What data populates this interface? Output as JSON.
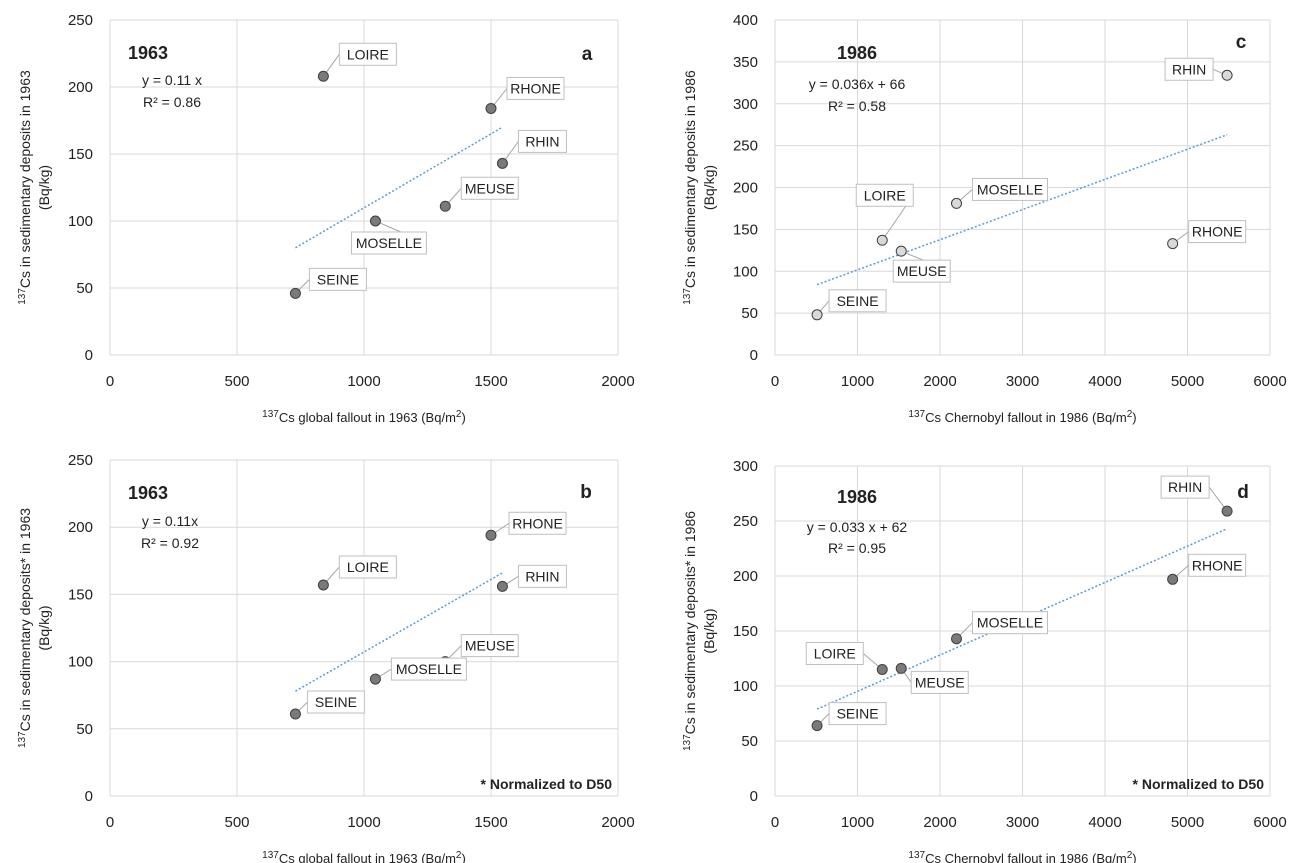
{
  "chart_data": [
    {
      "id": "a",
      "type": "scatter",
      "panel_letter": "a",
      "year_label": "1963",
      "equation": "y = 0.11 x",
      "r2": "R² = 0.86",
      "xlabel": {
        "pre": "",
        "sup": "137",
        "main": "Cs global fallout in 1963 (Bq/m",
        "sup2": "2",
        "post": ")"
      },
      "ylabel_lines": [
        {
          "pre": "",
          "sup": "137",
          "main": "Cs in sedimentary deposits in 1963"
        },
        {
          "pre": "",
          "sup": "",
          "main": "(Bq/kg)"
        }
      ],
      "xlim": [
        0,
        2000
      ],
      "ylim": [
        0,
        250
      ],
      "xticks": [
        0,
        500,
        1000,
        1500,
        2000
      ],
      "yticks": [
        0,
        50,
        100,
        150,
        200,
        250
      ],
      "grid": "vertical and horizontal",
      "points": [
        {
          "name": "LOIRE",
          "x": 840,
          "y": 208
        },
        {
          "name": "RHONE",
          "x": 1500,
          "y": 184
        },
        {
          "name": "RHIN",
          "x": 1545,
          "y": 143
        },
        {
          "name": "MEUSE",
          "x": 1320,
          "y": 111
        },
        {
          "name": "MOSELLE",
          "x": 1045,
          "y": 100
        },
        {
          "name": "SEINE",
          "x": 730,
          "y": 46
        }
      ],
      "trendline": {
        "x": [
          730,
          1545
        ],
        "y": [
          80,
          170
        ]
      },
      "footnote": "",
      "marker_color": "#7a7a7a",
      "trend_color": "#5b9bd5"
    },
    {
      "id": "c",
      "type": "scatter",
      "panel_letter": "c",
      "year_label": "1986",
      "equation": "y = 0.036x + 66",
      "r2": "R² = 0.58",
      "xlabel": {
        "pre": "",
        "sup": "137",
        "main": "Cs Chernobyl fallout in 1986 (Bq/m",
        "sup2": "2",
        "post": ")"
      },
      "ylabel_lines": [
        {
          "pre": "",
          "sup": "137",
          "main": "Cs in sedimentary deposits in 1986"
        },
        {
          "pre": "",
          "sup": "",
          "main": "(Bq/kg)"
        }
      ],
      "xlim": [
        0,
        6000
      ],
      "ylim": [
        0,
        400
      ],
      "xticks": [
        0,
        1000,
        2000,
        3000,
        4000,
        5000,
        6000
      ],
      "yticks": [
        0,
        50,
        100,
        150,
        200,
        250,
        300,
        350,
        400
      ],
      "grid": "vertical and horizontal",
      "points": [
        {
          "name": "RHIN",
          "x": 5480,
          "y": 334
        },
        {
          "name": "MOSELLE",
          "x": 2200,
          "y": 181
        },
        {
          "name": "LOIRE",
          "x": 1300,
          "y": 137
        },
        {
          "name": "MEUSE",
          "x": 1530,
          "y": 124
        },
        {
          "name": "RHONE",
          "x": 4820,
          "y": 133
        },
        {
          "name": "SEINE",
          "x": 510,
          "y": 48
        }
      ],
      "trendline": {
        "x": [
          510,
          5480
        ],
        "y": [
          84,
          263
        ]
      },
      "footnote": "",
      "marker_color": "#d9d9d9",
      "trend_color": "#5b9bd5"
    },
    {
      "id": "b",
      "type": "scatter",
      "panel_letter": "b",
      "year_label": "1963",
      "equation": "y = 0.11x",
      "r2": "R² = 0.92",
      "xlabel": {
        "pre": "",
        "sup": "137",
        "main": "Cs global fallout in 1963 (Bq/m",
        "sup2": "2",
        "post": ")"
      },
      "ylabel_lines": [
        {
          "pre": "",
          "sup": "137",
          "main": "Cs in sedimentary deposits* in 1963"
        },
        {
          "pre": "",
          "sup": "",
          "main": "(Bq/kg)"
        }
      ],
      "xlim": [
        0,
        2000
      ],
      "ylim": [
        0,
        250
      ],
      "xticks": [
        0,
        500,
        1000,
        1500,
        2000
      ],
      "yticks": [
        0,
        50,
        100,
        150,
        200,
        250
      ],
      "grid": "vertical and horizontal",
      "points": [
        {
          "name": "RHONE",
          "x": 1500,
          "y": 194
        },
        {
          "name": "LOIRE",
          "x": 840,
          "y": 157
        },
        {
          "name": "RHIN",
          "x": 1545,
          "y": 156
        },
        {
          "name": "MEUSE",
          "x": 1320,
          "y": 100
        },
        {
          "name": "MOSELLE",
          "x": 1045,
          "y": 87
        },
        {
          "name": "SEINE",
          "x": 730,
          "y": 61
        }
      ],
      "trendline": {
        "x": [
          730,
          1545
        ],
        "y": [
          78,
          166
        ]
      },
      "footnote": "* Normalized to D50",
      "marker_color": "#7a7a7a",
      "trend_color": "#5b9bd5"
    },
    {
      "id": "d",
      "type": "scatter",
      "panel_letter": "d",
      "year_label": "1986",
      "equation": "y = 0.033 x + 62",
      "r2": "R² = 0.95",
      "xlabel": {
        "pre": "",
        "sup": "137",
        "main": "Cs Chernobyl fallout in 1986 (Bq/m",
        "sup2": "2",
        "post": ")"
      },
      "ylabel_lines": [
        {
          "pre": "",
          "sup": "137",
          "main": "Cs in sedimentary deposits* in 1986"
        },
        {
          "pre": "",
          "sup": "",
          "main": "(Bq/kg)"
        }
      ],
      "xlim": [
        0,
        6000
      ],
      "ylim": [
        0,
        300
      ],
      "xticks": [
        0,
        1000,
        2000,
        3000,
        4000,
        5000,
        6000
      ],
      "yticks": [
        0,
        50,
        100,
        150,
        200,
        250,
        300
      ],
      "grid": "vertical and horizontal",
      "points": [
        {
          "name": "RHIN",
          "x": 5480,
          "y": 259
        },
        {
          "name": "RHONE",
          "x": 4820,
          "y": 197
        },
        {
          "name": "MOSELLE",
          "x": 2200,
          "y": 143
        },
        {
          "name": "LOIRE",
          "x": 1300,
          "y": 115
        },
        {
          "name": "MEUSE",
          "x": 1530,
          "y": 116
        },
        {
          "name": "SEINE",
          "x": 510,
          "y": 64
        }
      ],
      "trendline": {
        "x": [
          510,
          5480
        ],
        "y": [
          79,
          243
        ]
      },
      "footnote": "* Normalized to D50",
      "marker_color": "#7a7a7a",
      "trend_color": "#5b9bd5"
    }
  ]
}
